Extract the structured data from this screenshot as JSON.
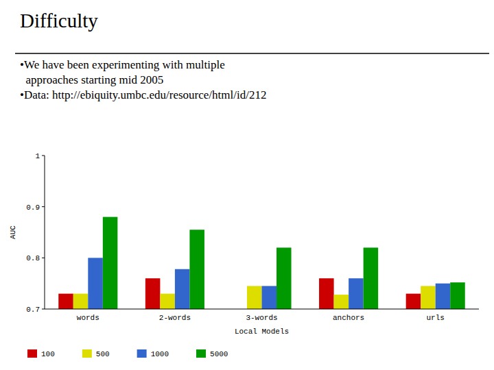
{
  "chart_data": {
    "type": "bar",
    "title": "Difficulty",
    "annotations": [
      "•We have been experimenting with multiple",
      "  approaches starting mid 2005",
      "•Data: http://ebiquity.umbc.edu/resource/html/id/212"
    ],
    "categories": [
      "words",
      "2-words",
      "3-words",
      "anchors",
      "urls"
    ],
    "series": [
      {
        "name": "100",
        "color": "#cc0000",
        "values": [
          0.73,
          0.76,
          0.7,
          0.76,
          0.73
        ]
      },
      {
        "name": "500",
        "color": "#dddd00",
        "values": [
          0.73,
          0.73,
          0.745,
          0.728,
          0.745
        ]
      },
      {
        "name": "1000",
        "color": "#3366cc",
        "values": [
          0.8,
          0.778,
          0.745,
          0.76,
          0.75
        ]
      },
      {
        "name": "5000",
        "color": "#009900",
        "values": [
          0.88,
          0.855,
          0.82,
          0.82,
          0.752
        ]
      }
    ],
    "xlabel": "Local Models",
    "ylabel": "AUC",
    "ylim": [
      0.7,
      1.0
    ],
    "yticks": [
      0.7,
      0.8,
      0.9,
      1
    ],
    "grid": false,
    "legend": "bottom"
  }
}
